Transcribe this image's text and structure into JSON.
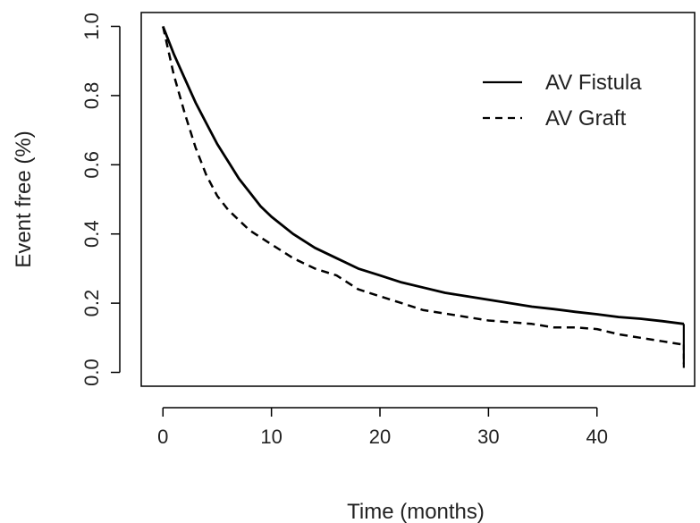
{
  "chart_data": {
    "type": "line",
    "xlabel": "Time (months)",
    "ylabel": "Event free (%)",
    "xlim": [
      -2,
      49
    ],
    "ylim": [
      -0.04,
      1.04
    ],
    "x_ticks": [
      0,
      10,
      20,
      30,
      40
    ],
    "x_tick_labels": [
      "0",
      "10",
      "20",
      "30",
      "40"
    ],
    "y_ticks": [
      0.0,
      0.2,
      0.4,
      0.6,
      0.8,
      1.0
    ],
    "y_tick_labels": [
      "0.0",
      "0.2",
      "0.4",
      "0.6",
      "0.8",
      "1.0"
    ],
    "grid": false,
    "legend": "top-right",
    "series": [
      {
        "name": "AV Fistula",
        "line_style": "solid",
        "x": [
          0,
          1,
          2,
          3,
          4,
          5,
          6,
          7,
          8,
          9,
          10,
          12,
          14,
          16,
          18,
          20,
          22,
          24,
          26,
          28,
          30,
          32,
          34,
          36,
          38,
          40,
          42,
          44,
          46,
          48
        ],
        "y": [
          1.0,
          0.92,
          0.85,
          0.78,
          0.72,
          0.66,
          0.61,
          0.56,
          0.52,
          0.48,
          0.45,
          0.4,
          0.36,
          0.33,
          0.3,
          0.28,
          0.26,
          0.245,
          0.23,
          0.22,
          0.21,
          0.2,
          0.19,
          0.183,
          0.175,
          0.168,
          0.16,
          0.155,
          0.148,
          0.14
        ]
      },
      {
        "name": "AV Graft",
        "line_style": "dashed",
        "x": [
          0,
          1,
          2,
          3,
          4,
          5,
          6,
          7,
          8,
          9,
          10,
          12,
          14,
          16,
          18,
          20,
          22,
          24,
          26,
          28,
          30,
          32,
          34,
          36,
          38,
          40,
          42,
          44,
          46,
          48
        ],
        "y": [
          1.0,
          0.86,
          0.75,
          0.65,
          0.57,
          0.51,
          0.47,
          0.44,
          0.41,
          0.39,
          0.37,
          0.33,
          0.3,
          0.28,
          0.24,
          0.22,
          0.2,
          0.18,
          0.17,
          0.16,
          0.15,
          0.145,
          0.14,
          0.13,
          0.13,
          0.125,
          0.11,
          0.1,
          0.09,
          0.08
        ]
      }
    ]
  }
}
